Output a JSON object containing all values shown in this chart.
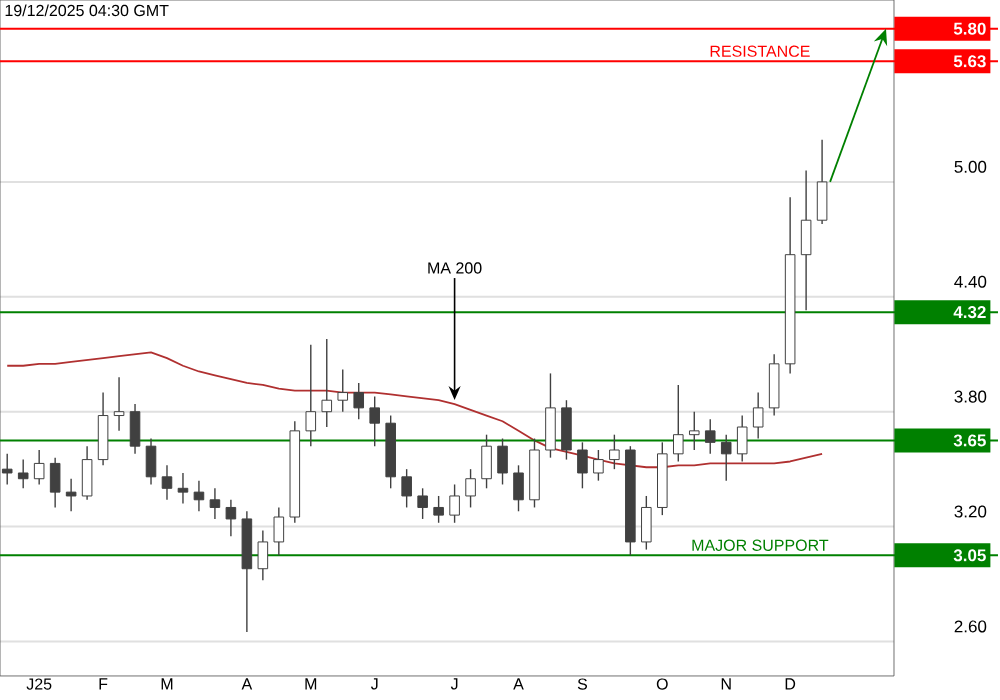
{
  "chart_data": {
    "type": "candlestick",
    "ylim": [
      2.42,
      5.95
    ],
    "categories": [
      null,
      null,
      "J25",
      null,
      null,
      null,
      "F",
      null,
      null,
      null,
      "M",
      null,
      null,
      null,
      null,
      "A",
      null,
      null,
      null,
      "M",
      null,
      null,
      null,
      "J",
      null,
      null,
      null,
      null,
      "J",
      null,
      null,
      null,
      "A",
      null,
      null,
      null,
      "S",
      null,
      null,
      null,
      null,
      "O",
      null,
      null,
      null,
      "N",
      null,
      null,
      null,
      "D",
      null,
      null
    ],
    "yticks": [
      {
        "value": 2.6,
        "label": "2.60"
      },
      {
        "value": 3.2,
        "label": "3.20"
      },
      {
        "value": 3.8,
        "label": "3.80"
      },
      {
        "value": 4.4,
        "label": "4.40"
      },
      {
        "value": 5.0,
        "label": "5.00"
      }
    ],
    "grid": "y",
    "series": [
      {
        "type": "line",
        "name": "MA 200",
        "color": "#b03030",
        "values": [
          4.04,
          4.04,
          4.05,
          4.05,
          4.06,
          4.07,
          4.08,
          4.09,
          4.1,
          4.11,
          4.08,
          4.04,
          4.01,
          3.99,
          3.97,
          3.95,
          3.94,
          3.92,
          3.91,
          3.91,
          3.91,
          3.9,
          3.9,
          3.9,
          3.89,
          3.88,
          3.87,
          3.86,
          3.84,
          3.81,
          3.78,
          3.75,
          3.7,
          3.65,
          3.61,
          3.59,
          3.57,
          3.55,
          3.53,
          3.52,
          3.51,
          3.51,
          3.52,
          3.52,
          3.53,
          3.53,
          3.53,
          3.53,
          3.53,
          3.54,
          3.56,
          3.58
        ]
      },
      {
        "type": "candlestick",
        "color": "#404040",
        "ohlc": [
          [
            3.5,
            3.58,
            3.42,
            3.48
          ],
          [
            3.48,
            3.55,
            3.4,
            3.45
          ],
          [
            3.45,
            3.6,
            3.42,
            3.53
          ],
          [
            3.53,
            3.56,
            3.3,
            3.38
          ],
          [
            3.38,
            3.45,
            3.28,
            3.36
          ],
          [
            3.36,
            3.62,
            3.34,
            3.55
          ],
          [
            3.55,
            3.9,
            3.52,
            3.78
          ],
          [
            3.78,
            3.98,
            3.7,
            3.8
          ],
          [
            3.8,
            3.84,
            3.58,
            3.62
          ],
          [
            3.62,
            3.66,
            3.42,
            3.46
          ],
          [
            3.46,
            3.52,
            3.34,
            3.4
          ],
          [
            3.4,
            3.48,
            3.32,
            3.38
          ],
          [
            3.38,
            3.44,
            3.28,
            3.34
          ],
          [
            3.34,
            3.4,
            3.24,
            3.3
          ],
          [
            3.3,
            3.34,
            3.15,
            3.24
          ],
          [
            3.24,
            3.28,
            2.65,
            2.98
          ],
          [
            2.98,
            3.18,
            2.92,
            3.12
          ],
          [
            3.12,
            3.3,
            3.05,
            3.25
          ],
          [
            3.25,
            3.75,
            3.22,
            3.7
          ],
          [
            3.7,
            4.15,
            3.62,
            3.8
          ],
          [
            3.8,
            4.18,
            3.72,
            3.86
          ],
          [
            3.86,
            4.02,
            3.8,
            3.9
          ],
          [
            3.9,
            3.95,
            3.76,
            3.82
          ],
          [
            3.82,
            3.88,
            3.62,
            3.74
          ],
          [
            3.74,
            3.78,
            3.4,
            3.46
          ],
          [
            3.46,
            3.5,
            3.3,
            3.36
          ],
          [
            3.36,
            3.4,
            3.24,
            3.3
          ],
          [
            3.3,
            3.36,
            3.22,
            3.26
          ],
          [
            3.26,
            3.42,
            3.22,
            3.36
          ],
          [
            3.36,
            3.5,
            3.3,
            3.45
          ],
          [
            3.45,
            3.68,
            3.4,
            3.62
          ],
          [
            3.62,
            3.66,
            3.42,
            3.48
          ],
          [
            3.48,
            3.52,
            3.28,
            3.34
          ],
          [
            3.34,
            3.66,
            3.3,
            3.6
          ],
          [
            3.6,
            4.0,
            3.56,
            3.82
          ],
          [
            3.82,
            3.86,
            3.55,
            3.6
          ],
          [
            3.6,
            3.64,
            3.4,
            3.48
          ],
          [
            3.48,
            3.6,
            3.44,
            3.55
          ],
          [
            3.55,
            3.68,
            3.5,
            3.6
          ],
          [
            3.6,
            3.62,
            3.05,
            3.12
          ],
          [
            3.12,
            3.36,
            3.08,
            3.3
          ],
          [
            3.3,
            3.64,
            3.26,
            3.58
          ],
          [
            3.58,
            3.94,
            3.54,
            3.68
          ],
          [
            3.68,
            3.8,
            3.6,
            3.7
          ],
          [
            3.7,
            3.76,
            3.58,
            3.64
          ],
          [
            3.64,
            3.68,
            3.44,
            3.58
          ],
          [
            3.58,
            3.78,
            3.54,
            3.72
          ],
          [
            3.72,
            3.9,
            3.66,
            3.82
          ],
          [
            3.82,
            4.1,
            3.78,
            4.05
          ],
          [
            4.05,
            4.92,
            4.0,
            4.62
          ],
          [
            4.62,
            5.06,
            4.33,
            4.8
          ],
          [
            4.8,
            5.22,
            4.78,
            5.0
          ]
        ]
      }
    ],
    "ref_lines": [
      {
        "axis": "y",
        "value": 5.8,
        "label": "5.80",
        "color": "#ff0000"
      },
      {
        "axis": "y",
        "value": 5.63,
        "label": "5.63",
        "color": "#ff0000"
      },
      {
        "axis": "y",
        "value": 4.32,
        "label": "4.32",
        "color": "#008000"
      },
      {
        "axis": "y",
        "value": 3.65,
        "label": "3.65",
        "color": "#008000"
      },
      {
        "axis": "y",
        "value": 3.05,
        "label": "3.05",
        "color": "#008000"
      }
    ],
    "annotations": [
      "19/12/2025 04:30 GMT",
      {
        "text": "RESISTANCE",
        "y": 5.63
      },
      {
        "text": "MAJOR SUPPORT",
        "y": 3.05
      }
    ]
  }
}
